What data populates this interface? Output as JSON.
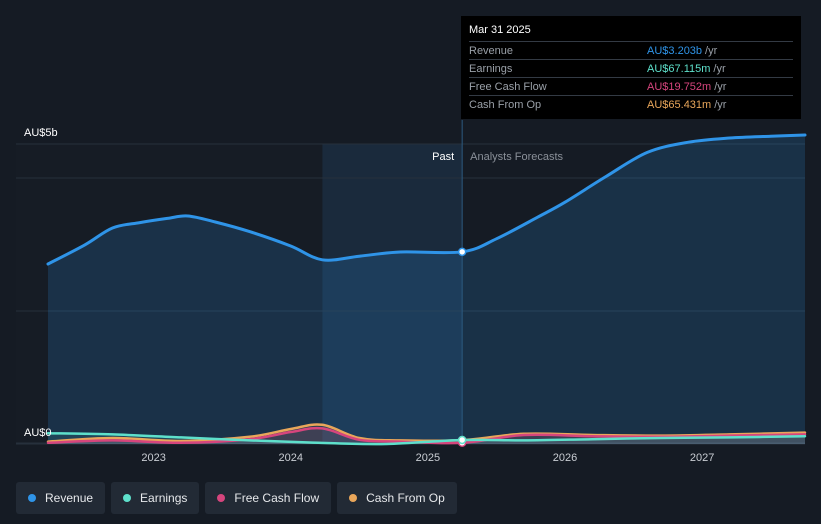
{
  "chart_data": {
    "type": "area",
    "title": "",
    "y_axis": {
      "top_label": "AU$5b",
      "bottom_label": "AU$0",
      "min": 0,
      "max": 5
    },
    "x_ticks": [
      {
        "label": "2023",
        "value": 2023.0
      },
      {
        "label": "2024",
        "value": 2024.0
      },
      {
        "label": "2025",
        "value": 2025.0
      },
      {
        "label": "2026",
        "value": 2026.0
      },
      {
        "label": "2027",
        "value": 2027.0
      }
    ],
    "x_range": [
      2022.23,
      2027.75
    ],
    "divider_x": 2025.25,
    "shade_start_x": 2024.23,
    "past_label": "Past",
    "forecast_label": "Analysts Forecasts",
    "series": [
      {
        "name": "Revenue",
        "color": "#2f94e8",
        "fill": true,
        "x": [
          2022.23,
          2022.5,
          2022.7,
          2022.9,
          2023.1,
          2023.25,
          2023.45,
          2023.7,
          2024.0,
          2024.23,
          2024.5,
          2024.8,
          2025.25,
          2025.5,
          2025.8,
          2026.0,
          2026.3,
          2026.6,
          2026.9,
          2027.2,
          2027.5,
          2027.75
        ],
        "y": [
          3.0,
          3.32,
          3.6,
          3.69,
          3.76,
          3.8,
          3.7,
          3.54,
          3.3,
          3.07,
          3.13,
          3.2,
          3.203,
          3.42,
          3.78,
          4.03,
          4.46,
          4.86,
          5.03,
          5.1,
          5.13,
          5.15
        ]
      },
      {
        "name": "Earnings",
        "color": "#5ee0cb",
        "fill": false,
        "x": [
          2022.23,
          2022.7,
          2023.2,
          2023.7,
          2024.2,
          2024.7,
          2025.25,
          2025.7,
          2026.2,
          2026.7,
          2027.2,
          2027.75
        ],
        "y": [
          0.18,
          0.16,
          0.11,
          0.06,
          0.02,
          0.0,
          0.067,
          0.06,
          0.08,
          0.1,
          0.11,
          0.13
        ]
      },
      {
        "name": "Free Cash Flow",
        "color": "#d6457d",
        "fill": false,
        "x": [
          2022.23,
          2022.7,
          2023.2,
          2023.7,
          2024.0,
          2024.23,
          2024.5,
          2024.8,
          2025.25,
          2025.7,
          2026.2,
          2026.7,
          2027.2,
          2027.75
        ],
        "y": [
          0.02,
          0.06,
          0.02,
          0.08,
          0.2,
          0.26,
          0.07,
          0.04,
          0.02,
          0.15,
          0.13,
          0.12,
          0.14,
          0.16
        ]
      },
      {
        "name": "Cash From Op",
        "color": "#e9a65a",
        "fill": false,
        "x": [
          2022.23,
          2022.7,
          2023.2,
          2023.7,
          2024.0,
          2024.23,
          2024.5,
          2024.8,
          2025.25,
          2025.7,
          2026.2,
          2026.7,
          2027.2,
          2027.75
        ],
        "y": [
          0.04,
          0.1,
          0.05,
          0.12,
          0.25,
          0.32,
          0.1,
          0.06,
          0.065,
          0.17,
          0.15,
          0.14,
          0.16,
          0.19
        ]
      }
    ]
  },
  "tooltip": {
    "date": "Mar 31 2025",
    "rows": [
      {
        "label": "Revenue",
        "value": "AU$3.203b",
        "unit": "/yr",
        "color": "#2f94e8"
      },
      {
        "label": "Earnings",
        "value": "AU$67.115m",
        "unit": "/yr",
        "color": "#5ee0cb"
      },
      {
        "label": "Free Cash Flow",
        "value": "AU$19.752m",
        "unit": "/yr",
        "color": "#d6457d"
      },
      {
        "label": "Cash From Op",
        "value": "AU$65.431m",
        "unit": "/yr",
        "color": "#e9a65a"
      }
    ]
  },
  "legend": [
    {
      "label": "Revenue",
      "color": "#2f94e8"
    },
    {
      "label": "Earnings",
      "color": "#5ee0cb"
    },
    {
      "label": "Free Cash Flow",
      "color": "#d6457d"
    },
    {
      "label": "Cash From Op",
      "color": "#e9a65a"
    }
  ]
}
